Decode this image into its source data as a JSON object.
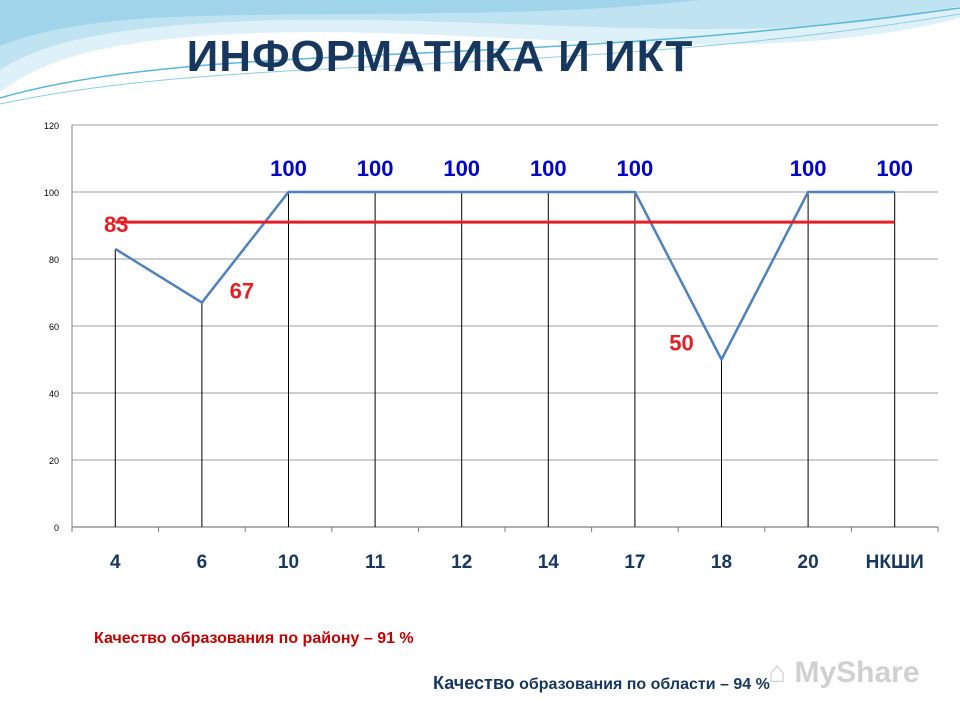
{
  "title": "ИНФОРМАТИКА И ИКТ",
  "chart_data": {
    "type": "line",
    "categories": [
      "4",
      "6",
      "10",
      "11",
      "12",
      "14",
      "17",
      "18",
      "20",
      "НКШИ"
    ],
    "series": [
      {
        "values": [
          83,
          67,
          100,
          100,
          100,
          100,
          100,
          50,
          100,
          100
        ],
        "data_labels": [
          "83",
          "67",
          "100",
          "100",
          "100",
          "100",
          "100",
          "50",
          "100",
          "100"
        ],
        "color": "#4f81bd"
      }
    ],
    "reference_line": {
      "value": 91,
      "color": "#e31e24"
    },
    "ylim": [
      0,
      120
    ],
    "yticks": [
      0,
      20,
      40,
      60,
      80,
      100,
      120
    ],
    "grid": true,
    "drop_lines": true
  },
  "captions": {
    "district": "Качество образования по району – 91 %",
    "region_prefix": "Качество",
    "region_rest": " образования по области – 94 %"
  },
  "colors": {
    "title": "#17375e",
    "label_blue": "#0000cc",
    "label_red": "#e31e24",
    "axis_tick_labels": "#17375e"
  }
}
